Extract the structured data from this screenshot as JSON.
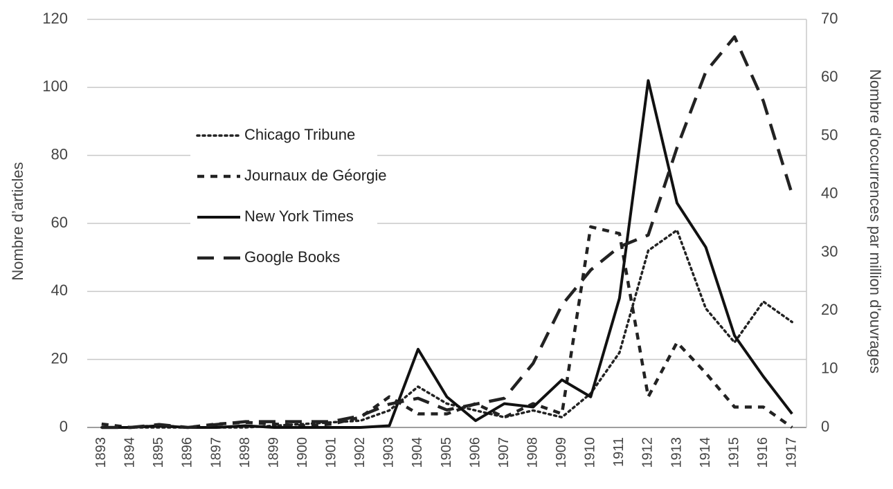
{
  "chart_data": {
    "type": "line",
    "categories": [
      "1893",
      "1894",
      "1895",
      "1896",
      "1897",
      "1898",
      "1899",
      "1900",
      "1901",
      "1902",
      "1903",
      "1904",
      "1905",
      "1906",
      "1907",
      "1908",
      "1909",
      "1910",
      "1911",
      "1912",
      "1913",
      "1914",
      "1915",
      "1916",
      "1917"
    ],
    "series": [
      {
        "name": "Chicago Tribune",
        "color": "#222222",
        "style": "dotted",
        "values": [
          0,
          0,
          0,
          0,
          0,
          0,
          0.5,
          1,
          1.5,
          2,
          5,
          12,
          7,
          5,
          3,
          5,
          3,
          10,
          22,
          52,
          58,
          35,
          25,
          37,
          31
        ]
      },
      {
        "name": "Journaux de Géorgie",
        "color": "#222222",
        "style": "short-dash",
        "values": [
          1,
          0,
          0.5,
          0,
          1,
          1.5,
          1,
          0.5,
          1,
          3,
          9,
          4,
          4,
          7,
          3,
          7,
          4,
          59,
          57,
          9,
          25,
          16,
          6,
          6,
          0
        ]
      },
      {
        "name": "New York Times",
        "color": "#111111",
        "style": "solid",
        "values": [
          0,
          0,
          0.5,
          0,
          0,
          0.5,
          0,
          0,
          0,
          0,
          0.5,
          23,
          9,
          2,
          7,
          6,
          14,
          9,
          38,
          102,
          66,
          53,
          27,
          15,
          4
        ]
      },
      {
        "name": "Google Books",
        "color": "#222222",
        "style": "long-dash",
        "axis": "y2",
        "values": [
          0,
          0,
          0.5,
          0,
          0.5,
          1,
          1,
          1,
          1,
          2,
          4,
          5,
          3,
          4,
          5,
          11,
          21,
          27,
          31,
          33,
          48,
          61,
          67,
          56,
          40
        ]
      }
    ],
    "ylabel": "Nombre d’articles",
    "y2label": "Nombre d'occurrences par million d'ouvrages",
    "ylim": [
      0,
      120
    ],
    "yticks": [
      0,
      20,
      40,
      60,
      80,
      100,
      120
    ],
    "y2lim": [
      0,
      70
    ],
    "y2ticks": [
      0,
      10,
      20,
      30,
      40,
      50,
      60,
      70
    ],
    "grid": true,
    "legend": "upper left"
  }
}
